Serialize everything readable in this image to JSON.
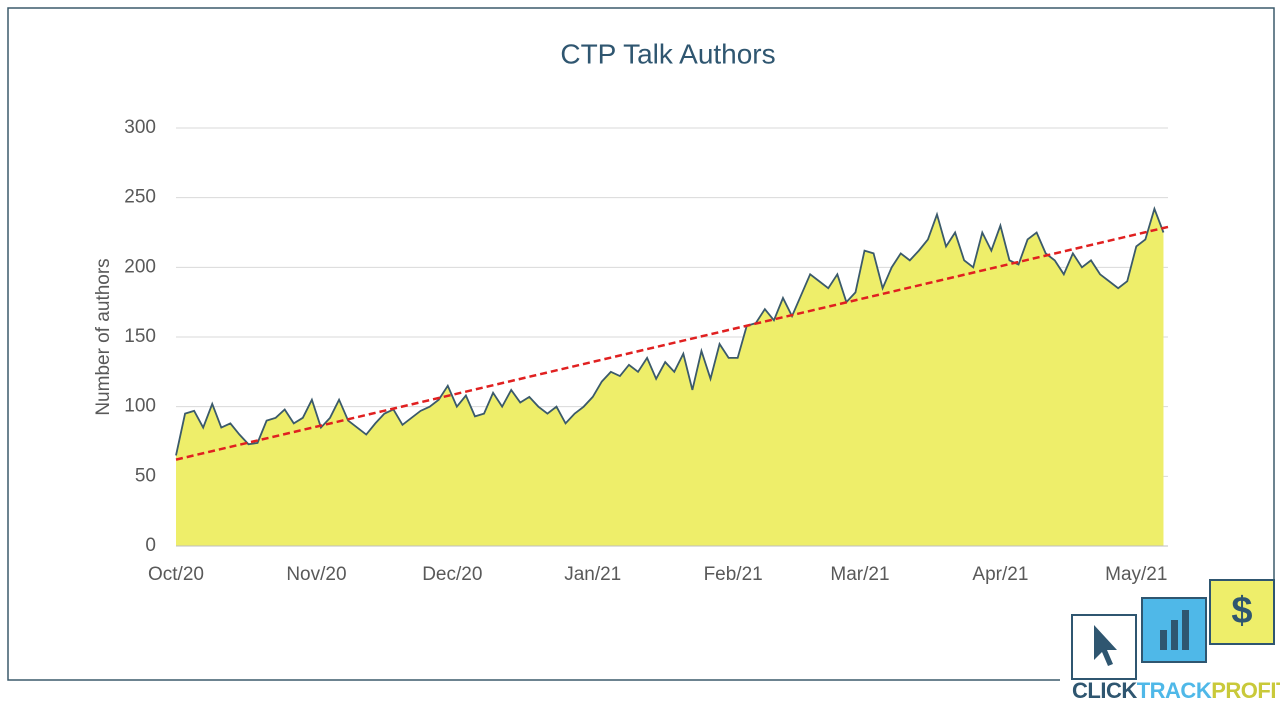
{
  "chart_data": {
    "type": "area",
    "title": "CTP Talk Authors",
    "y_label": "Number of authors",
    "x": [
      0,
      2,
      4,
      6,
      8,
      10,
      12,
      14,
      16,
      18,
      20,
      22,
      24,
      26,
      28,
      30,
      32,
      34,
      36,
      38,
      40,
      42,
      44,
      46,
      48,
      50,
      52,
      54,
      56,
      58,
      60,
      62,
      64,
      66,
      68,
      70,
      72,
      74,
      76,
      78,
      80,
      82,
      84,
      86,
      88,
      90,
      92,
      94,
      96,
      98,
      100,
      102,
      104,
      106,
      108,
      110,
      112,
      114,
      116,
      118,
      120,
      122,
      124,
      126,
      128,
      130,
      132,
      134,
      136,
      138,
      140,
      142,
      144,
      146,
      148,
      150,
      152,
      154,
      156,
      158,
      160,
      162,
      164,
      166,
      168,
      170,
      172,
      174,
      176,
      178,
      180,
      182,
      184,
      186,
      188,
      190,
      192,
      194,
      196,
      198,
      200,
      202,
      204,
      206,
      208,
      210,
      212,
      214,
      216,
      218
    ],
    "series": [
      {
        "name": "Authors",
        "color": "#eeee6a",
        "line_color": "#3b5a6b",
        "values": [
          65,
          95,
          97,
          85,
          102,
          85,
          88,
          80,
          73,
          74,
          90,
          92,
          98,
          88,
          92,
          105,
          85,
          92,
          105,
          90,
          85,
          80,
          88,
          95,
          98,
          87,
          92,
          97,
          100,
          105,
          115,
          100,
          108,
          93,
          95,
          110,
          100,
          112,
          103,
          107,
          100,
          95,
          100,
          88,
          95,
          100,
          107,
          118,
          125,
          122,
          130,
          125,
          135,
          120,
          132,
          125,
          138,
          112,
          140,
          120,
          145,
          135,
          135,
          158,
          160,
          170,
          162,
          178,
          165,
          180,
          195,
          190,
          185,
          195,
          175,
          182,
          212,
          210,
          185,
          200,
          210,
          205,
          212,
          220,
          238,
          215,
          225,
          205,
          200,
          225,
          212,
          230,
          205,
          202,
          220,
          225,
          210,
          205,
          195,
          210,
          200,
          205,
          195,
          190,
          185,
          190,
          215,
          220,
          242,
          225
        ]
      }
    ],
    "trend": {
      "color": "#e02020",
      "x": [
        0,
        219
      ],
      "values": [
        62,
        229
      ]
    },
    "xlim": [
      0,
      219
    ],
    "xticks": [
      {
        "value": 0,
        "label": "Oct/20"
      },
      {
        "value": 31,
        "label": "Nov/20"
      },
      {
        "value": 61,
        "label": "Dec/20"
      },
      {
        "value": 92,
        "label": "Jan/21"
      },
      {
        "value": 123,
        "label": "Feb/21"
      },
      {
        "value": 151,
        "label": "Mar/21"
      },
      {
        "value": 182,
        "label": "Apr/21"
      },
      {
        "value": 212,
        "label": "May/21"
      }
    ],
    "ylim": [
      0,
      300
    ],
    "yticks": [
      0,
      50,
      100,
      150,
      200,
      250,
      300
    ],
    "grid": true
  },
  "logo": {
    "part1": "CLICK",
    "part2": "TRACK",
    "part3": "PROFIT"
  }
}
